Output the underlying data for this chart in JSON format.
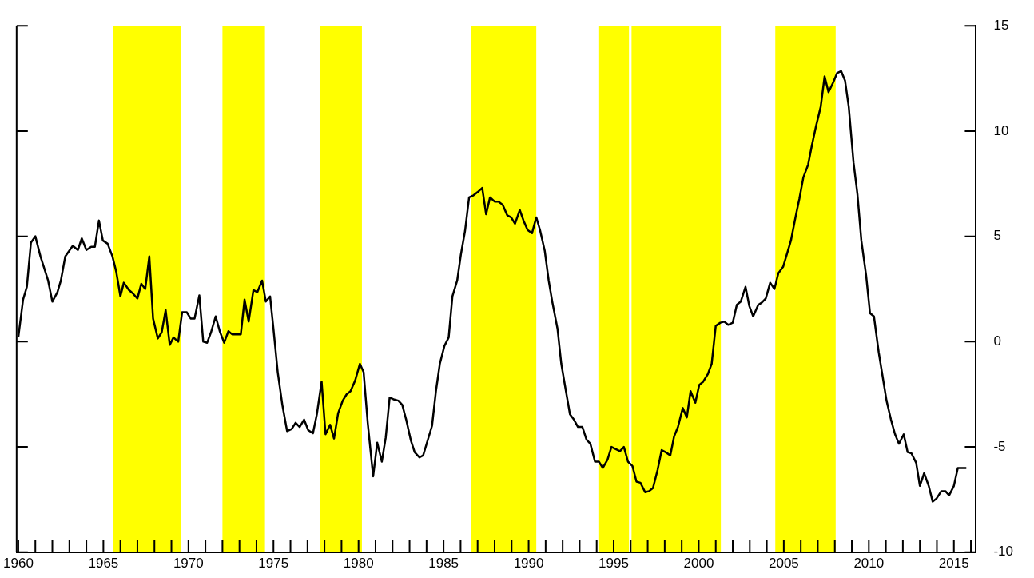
{
  "chart_data": {
    "type": "line",
    "x": [
      1960.0,
      1960.28,
      1960.5,
      1960.74,
      1961.0,
      1961.3,
      1961.75,
      1962.0,
      1962.3,
      1962.5,
      1962.76,
      1963.2,
      1963.5,
      1963.73,
      1964.0,
      1964.28,
      1964.5,
      1964.74,
      1964.97,
      1965.25,
      1965.53,
      1965.76,
      1966.0,
      1966.2,
      1966.5,
      1966.72,
      1967.0,
      1967.23,
      1967.46,
      1967.7,
      1967.92,
      1968.2,
      1968.43,
      1968.66,
      1968.9,
      1969.12,
      1969.4,
      1969.63,
      1969.9,
      1970.13,
      1970.36,
      1970.64,
      1970.87,
      1971.1,
      1971.33,
      1971.6,
      1971.84,
      1972.1,
      1972.35,
      1972.57,
      1972.8,
      1973.08,
      1973.3,
      1973.54,
      1973.82,
      1974.05,
      1974.33,
      1974.55,
      1974.8,
      1975.0,
      1975.25,
      1975.52,
      1975.8,
      1976.07,
      1976.3,
      1976.54,
      1976.8,
      1977.04,
      1977.32,
      1977.55,
      1977.83,
      1978.06,
      1978.33,
      1978.56,
      1978.8,
      1979.07,
      1979.3,
      1979.53,
      1979.8,
      1980.08,
      1980.3,
      1980.54,
      1980.86,
      1981.1,
      1981.37,
      1981.6,
      1981.83,
      1982.1,
      1982.34,
      1982.57,
      1982.8,
      1983.08,
      1983.3,
      1983.58,
      1983.8,
      1984.04,
      1984.32,
      1984.55,
      1984.78,
      1985.05,
      1985.3,
      1985.52,
      1985.8,
      1986.02,
      1986.26,
      1986.5,
      1986.76,
      1987.0,
      1987.27,
      1987.5,
      1987.73,
      1988.0,
      1988.23,
      1988.47,
      1988.74,
      1988.97,
      1989.2,
      1989.48,
      1989.7,
      1989.94,
      1990.2,
      1990.45,
      1990.67,
      1990.95,
      1991.18,
      1991.4,
      1991.7,
      1991.92,
      1992.15,
      1992.43,
      1992.66,
      1992.9,
      1993.16,
      1993.4,
      1993.63,
      1993.9,
      1994.13,
      1994.36,
      1994.64,
      1994.87,
      1995.1,
      1995.37,
      1995.6,
      1995.84,
      1996.1,
      1996.34,
      1996.57,
      1996.85,
      1997.08,
      1997.31,
      1997.58,
      1997.82,
      1998.05,
      1998.33,
      1998.55,
      1998.78,
      1999.06,
      1999.3,
      1999.52,
      1999.8,
      2000.03,
      2000.26,
      2000.53,
      2000.76,
      2001.0,
      2001.27,
      2001.5,
      2001.73,
      2002.0,
      2002.24,
      2002.47,
      2002.75,
      2002.97,
      2003.2,
      2003.5,
      2003.7,
      2003.94,
      2004.2,
      2004.45,
      2004.68,
      2004.96,
      2005.18,
      2005.42,
      2005.7,
      2005.92,
      2006.15,
      2006.43,
      2006.66,
      2006.9,
      2007.17,
      2007.4,
      2007.63,
      2007.9,
      2008.13,
      2008.37,
      2008.6,
      2008.82,
      2009.1,
      2009.33,
      2009.56,
      2009.84,
      2010.07,
      2010.3,
      2010.58,
      2010.8,
      2011.04,
      2011.3,
      2011.54,
      2011.77,
      2012.05,
      2012.28,
      2012.5,
      2012.78,
      2013.0,
      2013.25,
      2013.52,
      2013.75,
      2013.98,
      2014.26,
      2014.5,
      2014.72,
      2015.0,
      2015.23,
      2015.73
    ],
    "series": [
      {
        "color": "#000000",
        "values": [
          0.22,
          2.0,
          2.6,
          4.7,
          5.0,
          4.05,
          2.9,
          1.9,
          2.35,
          2.9,
          4.05,
          4.55,
          4.35,
          4.9,
          4.35,
          4.5,
          4.5,
          5.75,
          4.8,
          4.65,
          4.05,
          3.3,
          2.15,
          2.8,
          2.45,
          2.3,
          2.05,
          2.75,
          2.5,
          4.05,
          1.1,
          0.15,
          0.45,
          1.5,
          -0.15,
          0.2,
          0.0,
          1.4,
          1.4,
          1.1,
          1.1,
          2.2,
          0.0,
          -0.05,
          0.45,
          1.2,
          0.5,
          -0.05,
          0.5,
          0.35,
          0.35,
          0.35,
          2.0,
          0.95,
          2.45,
          2.35,
          2.9,
          1.9,
          2.15,
          0.6,
          -1.45,
          -3.0,
          -4.25,
          -4.15,
          -3.85,
          -4.05,
          -3.7,
          -4.2,
          -4.35,
          -3.45,
          -1.9,
          -4.4,
          -3.95,
          -4.6,
          -3.4,
          -2.8,
          -2.5,
          -2.35,
          -1.85,
          -1.05,
          -1.45,
          -3.85,
          -6.4,
          -4.8,
          -5.7,
          -4.55,
          -2.65,
          -2.75,
          -2.8,
          -3.0,
          -3.7,
          -4.7,
          -5.25,
          -5.5,
          -5.4,
          -4.75,
          -4.0,
          -2.35,
          -1.05,
          -0.2,
          0.2,
          2.15,
          2.9,
          4.15,
          5.25,
          6.85,
          6.95,
          7.1,
          7.3,
          6.05,
          6.85,
          6.65,
          6.65,
          6.5,
          6.0,
          5.9,
          5.6,
          6.25,
          5.75,
          5.3,
          5.15,
          5.9,
          5.3,
          4.3,
          2.9,
          1.85,
          0.6,
          -1.05,
          -2.15,
          -3.45,
          -3.7,
          -4.05,
          -4.05,
          -4.65,
          -4.85,
          -5.7,
          -5.7,
          -6.0,
          -5.6,
          -5.0,
          -5.1,
          -5.2,
          -5.0,
          -5.7,
          -5.9,
          -6.65,
          -6.7,
          -7.15,
          -7.1,
          -6.95,
          -6.1,
          -5.15,
          -5.25,
          -5.4,
          -4.5,
          -4.05,
          -3.15,
          -3.6,
          -2.35,
          -2.9,
          -2.05,
          -1.9,
          -1.55,
          -1.05,
          0.75,
          0.9,
          0.95,
          0.8,
          0.9,
          1.75,
          1.9,
          2.6,
          1.7,
          1.2,
          1.75,
          1.85,
          2.05,
          2.8,
          2.5,
          3.25,
          3.55,
          4.15,
          4.8,
          5.95,
          6.8,
          7.8,
          8.4,
          9.35,
          10.25,
          11.15,
          12.6,
          11.85,
          12.3,
          12.75,
          12.85,
          12.4,
          11.15,
          8.5,
          7.0,
          4.8,
          3.15,
          1.35,
          1.2,
          -0.5,
          -1.6,
          -2.8,
          -3.7,
          -4.4,
          -4.85,
          -4.4,
          -5.25,
          -5.3,
          -5.75,
          -6.85,
          -6.25,
          -6.85,
          -7.6,
          -7.45,
          -7.1,
          -7.1,
          -7.3,
          -6.85,
          -6.0,
          -6.0
        ]
      }
    ],
    "xlim": [
      1959.9,
      2016.3
    ],
    "xticks": [
      1960,
      {
        "value": 1961,
        "label": null
      },
      {
        "value": 1962,
        "label": null
      },
      {
        "value": 1963,
        "label": null
      },
      {
        "value": 1964,
        "label": null
      },
      1965,
      {
        "value": 1966,
        "label": null
      },
      {
        "value": 1967,
        "label": null
      },
      {
        "value": 1968,
        "label": null
      },
      {
        "value": 1969,
        "label": null
      },
      1970,
      {
        "value": 1971,
        "label": null
      },
      {
        "value": 1972,
        "label": null
      },
      {
        "value": 1973,
        "label": null
      },
      {
        "value": 1974,
        "label": null
      },
      1975,
      {
        "value": 1976,
        "label": null
      },
      {
        "value": 1977,
        "label": null
      },
      {
        "value": 1978,
        "label": null
      },
      {
        "value": 1979,
        "label": null
      },
      1980,
      {
        "value": 1981,
        "label": null
      },
      {
        "value": 1982,
        "label": null
      },
      {
        "value": 1983,
        "label": null
      },
      {
        "value": 1984,
        "label": null
      },
      1985,
      {
        "value": 1986,
        "label": null
      },
      {
        "value": 1987,
        "label": null
      },
      {
        "value": 1988,
        "label": null
      },
      {
        "value": 1989,
        "label": null
      },
      1990,
      {
        "value": 1991,
        "label": null
      },
      {
        "value": 1992,
        "label": null
      },
      {
        "value": 1993,
        "label": null
      },
      {
        "value": 1994,
        "label": null
      },
      1995,
      {
        "value": 1996,
        "label": null
      },
      {
        "value": 1997,
        "label": null
      },
      {
        "value": 1998,
        "label": null
      },
      {
        "value": 1999,
        "label": null
      },
      2000,
      {
        "value": 2001,
        "label": null
      },
      {
        "value": 2002,
        "label": null
      },
      {
        "value": 2003,
        "label": null
      },
      {
        "value": 2004,
        "label": null
      },
      2005,
      {
        "value": 2006,
        "label": null
      },
      {
        "value": 2007,
        "label": null
      },
      {
        "value": 2008,
        "label": null
      },
      {
        "value": 2009,
        "label": null
      },
      2010,
      {
        "value": 2011,
        "label": null
      },
      {
        "value": 2012,
        "label": null
      },
      {
        "value": 2013,
        "label": null
      },
      {
        "value": 2014,
        "label": null
      },
      2015,
      {
        "value": 2016,
        "label": null
      }
    ],
    "ylim": [
      -10,
      15
    ],
    "yticks": [
      -10,
      -5,
      0,
      5,
      10,
      15
    ],
    "bands": [
      {
        "axis": "x",
        "from": 1965.57,
        "to": 1969.58,
        "color": "#ffff00"
      },
      {
        "axis": "x",
        "from": 1972.0,
        "to": 1974.5,
        "color": "#ffff00"
      },
      {
        "axis": "x",
        "from": 1977.75,
        "to": 1980.2,
        "color": "#ffff00"
      },
      {
        "axis": "x",
        "from": 1986.6,
        "to": 1990.45,
        "color": "#ffff00"
      },
      {
        "axis": "x",
        "from": 1994.1,
        "to": 1995.9,
        "color": "#ffff00"
      },
      {
        "axis": "x",
        "from": 1996.05,
        "to": 2001.3,
        "color": "#ffff00"
      },
      {
        "axis": "x",
        "from": 2004.5,
        "to": 2008.05,
        "color": "#ffff00"
      }
    ]
  }
}
